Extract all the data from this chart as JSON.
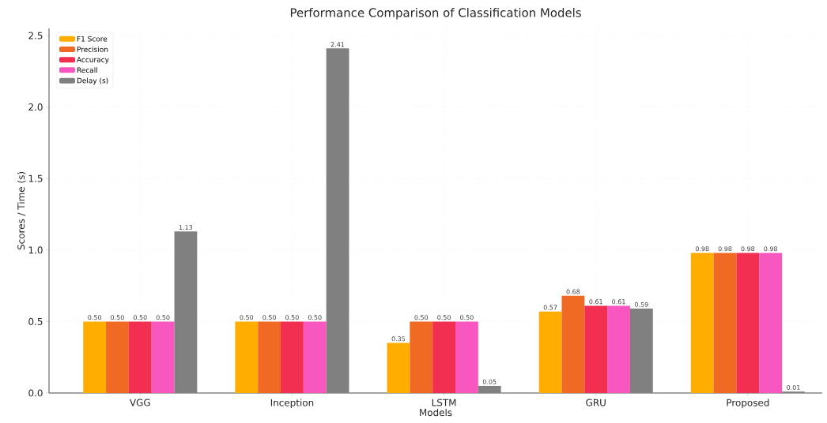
{
  "chart_data": {
    "type": "bar",
    "title": "Performance Comparison of Classification Models",
    "xlabel": "Models",
    "ylabel": "Scores / Time (s)",
    "categories": [
      "VGG",
      "Inception",
      "LSTM",
      "GRU",
      "Proposed"
    ],
    "series": [
      {
        "name": "F1 Score",
        "color": "#ffad00",
        "values": [
          0.5,
          0.5,
          0.35,
          0.57,
          0.98
        ],
        "value_labels": [
          "0.50",
          "0.50",
          "0.35",
          "0.57",
          "0.98"
        ]
      },
      {
        "name": "Precision",
        "color": "#f06a23",
        "values": [
          0.5,
          0.5,
          0.5,
          0.68,
          0.98
        ],
        "value_labels": [
          "0.50",
          "0.50",
          "0.50",
          "0.68",
          "0.98"
        ]
      },
      {
        "name": "Accuracy",
        "color": "#f22e51",
        "values": [
          0.5,
          0.5,
          0.5,
          0.61,
          0.98
        ],
        "value_labels": [
          "0.50",
          "0.50",
          "0.50",
          "0.61",
          "0.98"
        ]
      },
      {
        "name": "Recall",
        "color": "#f757be",
        "values": [
          0.5,
          0.5,
          0.5,
          0.61,
          0.98
        ],
        "value_labels": [
          "0.50",
          "0.50",
          "0.50",
          "0.61",
          "0.98"
        ]
      },
      {
        "name": "Delay (s)",
        "color": "#808080",
        "values": [
          1.13,
          2.41,
          0.05,
          0.59,
          0.01
        ],
        "value_labels": [
          "1.13",
          "2.41",
          "0.05",
          "0.59",
          "0.01"
        ]
      }
    ],
    "ylim": [
      0,
      2.55
    ],
    "yticks": [
      {
        "value": 0,
        "label": "0.0"
      },
      {
        "value": 0.5,
        "label": "0.5"
      },
      {
        "value": 1,
        "label": "1.0"
      },
      {
        "value": 1.5,
        "label": "1.5"
      },
      {
        "value": 2,
        "label": "2.0"
      },
      {
        "value": 2.5,
        "label": "2.5"
      }
    ],
    "grid": true,
    "legend": "top left"
  }
}
